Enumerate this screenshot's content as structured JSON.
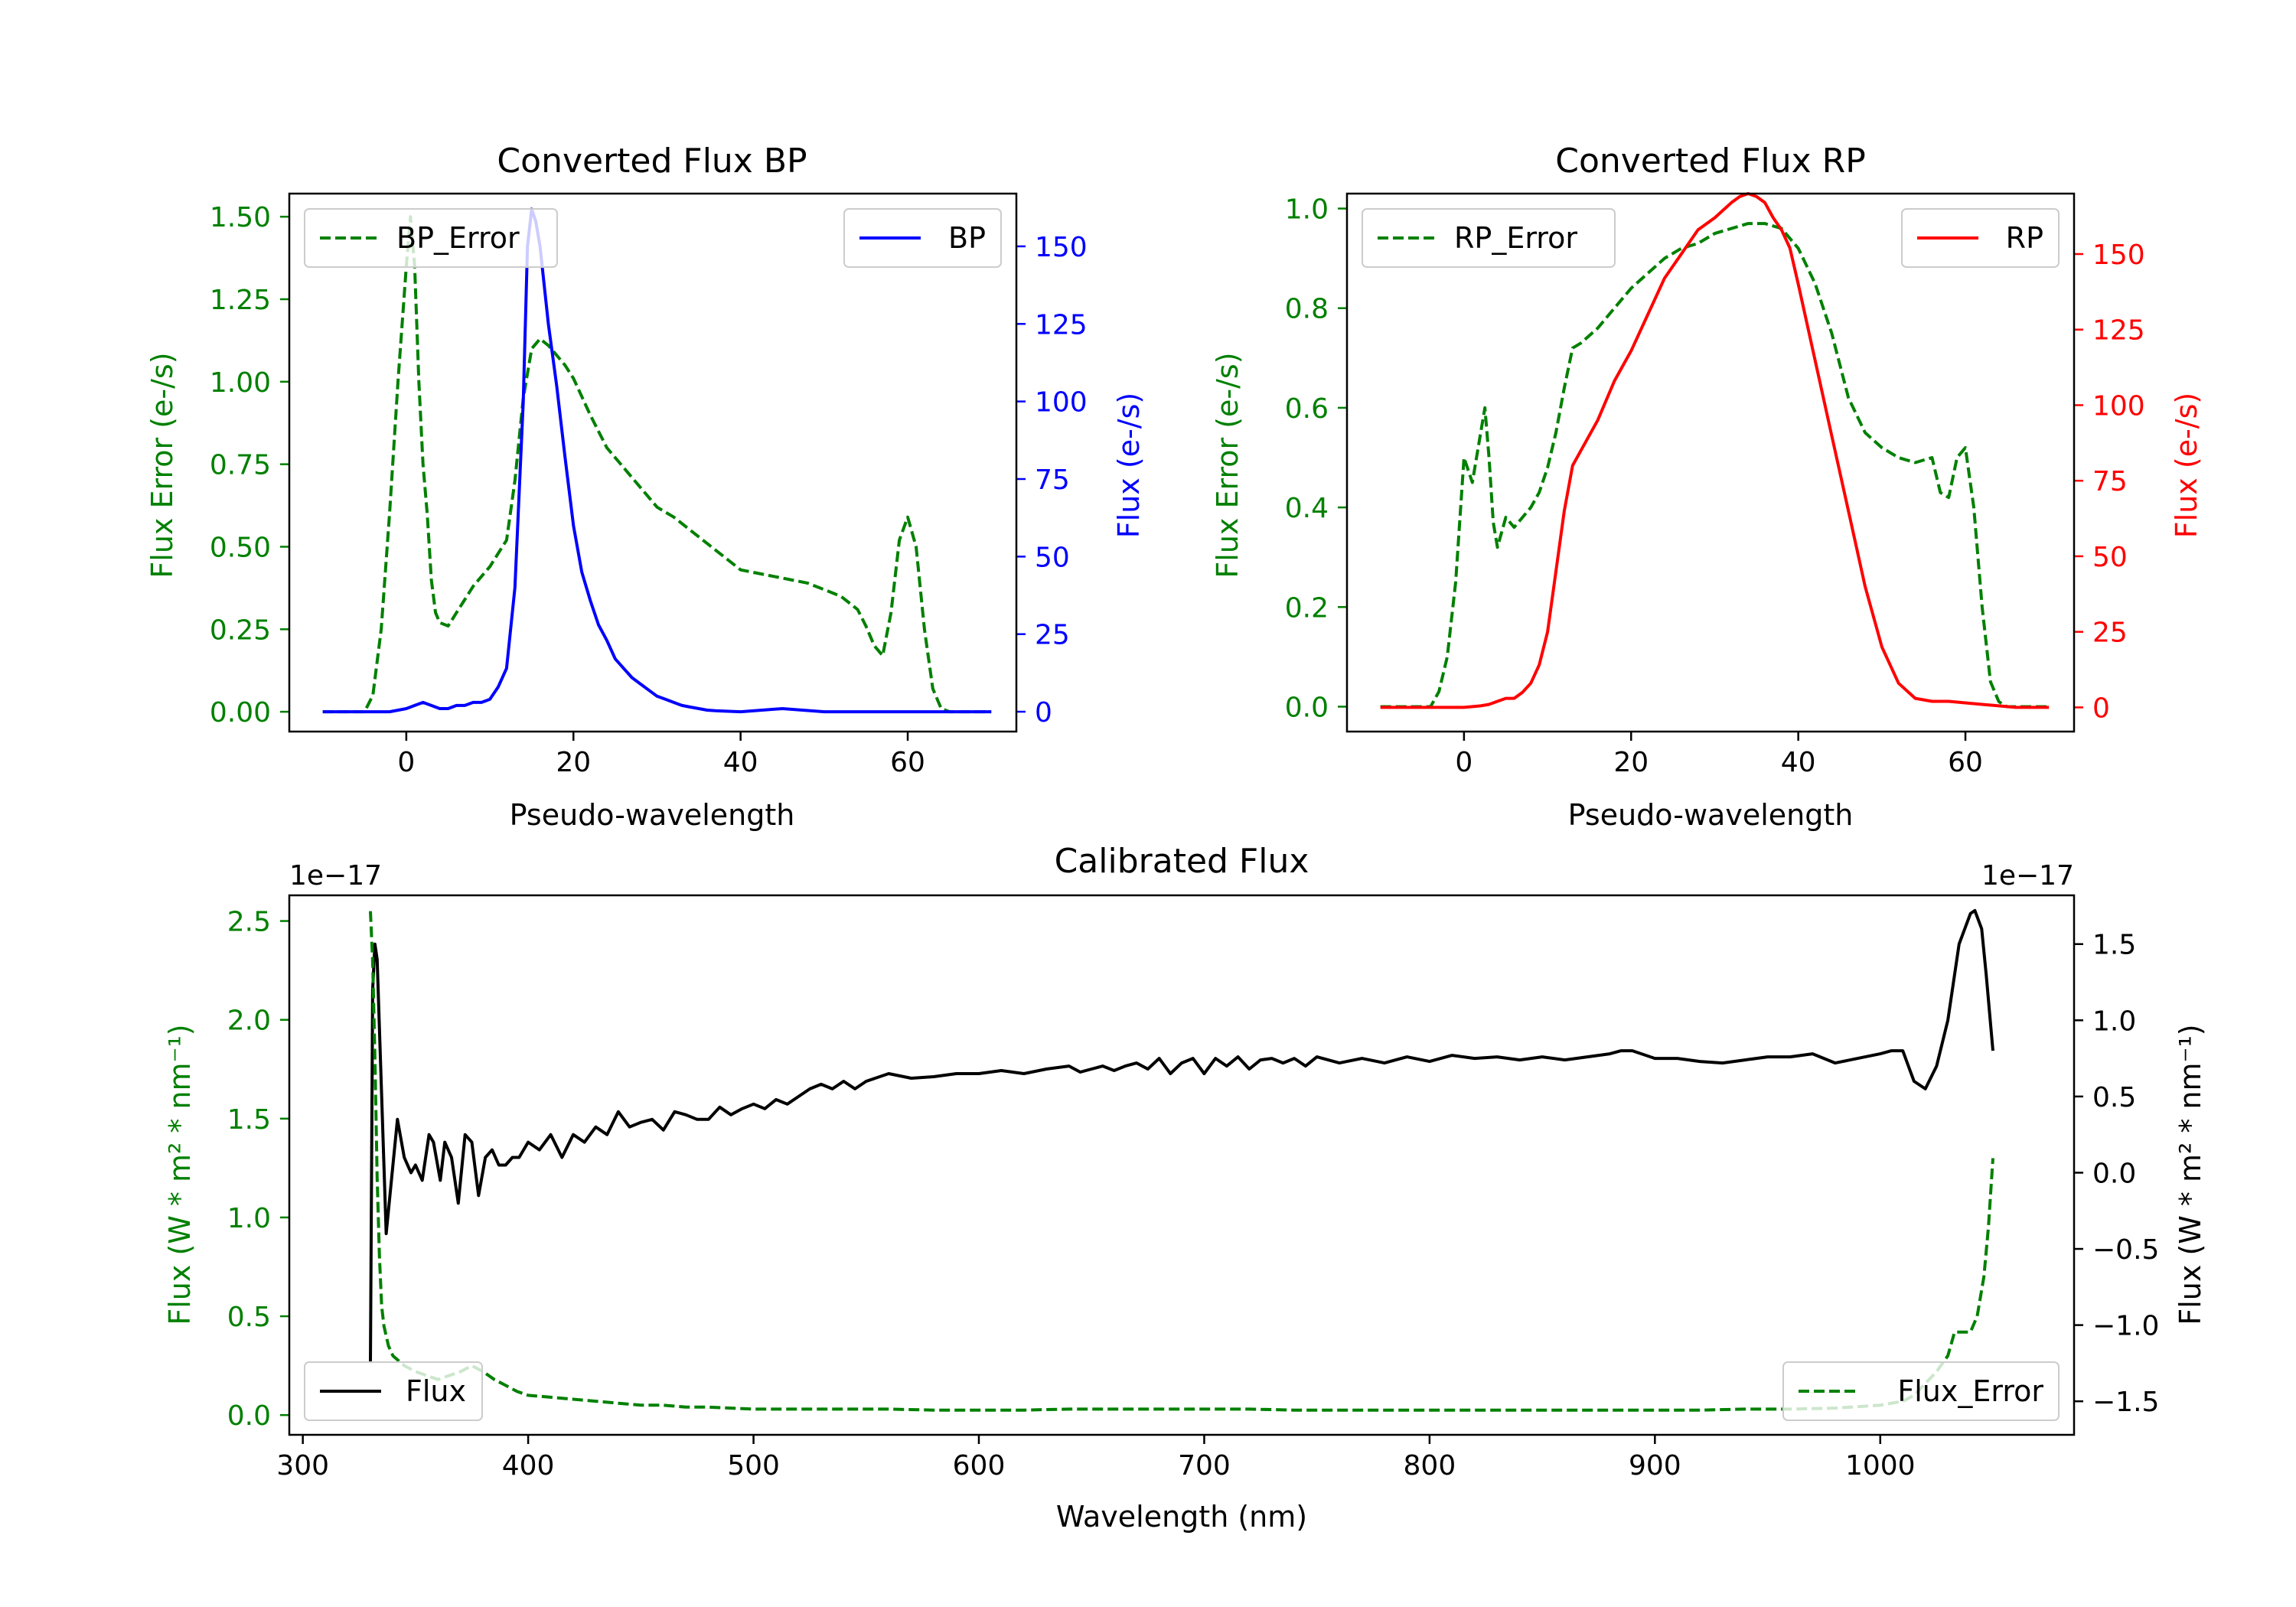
{
  "figure": {
    "title": ""
  },
  "chart_data": [
    {
      "type": "line",
      "title": "Converted Flux BP",
      "xlabel": "Pseudo-wavelength",
      "ylabel_left": "Flux Error (e-/s)",
      "ylabel_right": "Flux (e-/s)",
      "xlim": [
        -14,
        73
      ],
      "ylim_left": [
        -0.06,
        1.57
      ],
      "ylim_right": [
        -6.4,
        167
      ],
      "xticks": [
        "0",
        "20",
        "40",
        "60"
      ],
      "yticks_left": [
        "0.00",
        "0.25",
        "0.50",
        "0.75",
        "1.00",
        "1.25",
        "1.50"
      ],
      "yticks_right": [
        "0",
        "25",
        "50",
        "75",
        "100",
        "125",
        "150"
      ],
      "left_color": "#008000",
      "right_color": "#0000ff",
      "legend_left": "BP_Error",
      "legend_right": "BP",
      "series": [
        {
          "name": "BP_Error",
          "axis": "left",
          "style": "dashed",
          "color": "#008000",
          "x": [
            -10,
            -5,
            -4,
            -3,
            -2,
            -1,
            0,
            0.5,
            1,
            1.5,
            2,
            2.5,
            3,
            3.5,
            4,
            5,
            6,
            7,
            8,
            9,
            10,
            11,
            12,
            13,
            14,
            15,
            16,
            17,
            18,
            19,
            20,
            22,
            24,
            26,
            28,
            30,
            32,
            34,
            36,
            38,
            40,
            42,
            44,
            46,
            48,
            50,
            52,
            54,
            55,
            56,
            57,
            58,
            59,
            60,
            61,
            62,
            63,
            64,
            65,
            70
          ],
          "y": [
            0,
            0,
            0.05,
            0.25,
            0.6,
            1.0,
            1.35,
            1.5,
            1.35,
            1.0,
            0.75,
            0.6,
            0.4,
            0.3,
            0.27,
            0.26,
            0.3,
            0.34,
            0.38,
            0.41,
            0.44,
            0.48,
            0.52,
            0.7,
            0.95,
            1.1,
            1.13,
            1.11,
            1.08,
            1.05,
            1.01,
            0.9,
            0.8,
            0.74,
            0.68,
            0.62,
            0.59,
            0.55,
            0.51,
            0.47,
            0.43,
            0.42,
            0.41,
            0.4,
            0.39,
            0.37,
            0.35,
            0.31,
            0.26,
            0.2,
            0.17,
            0.3,
            0.52,
            0.59,
            0.5,
            0.25,
            0.07,
            0.01,
            0,
            0
          ]
        },
        {
          "name": "BP",
          "axis": "right",
          "style": "solid",
          "color": "#0000ff",
          "x": [
            -10,
            -5,
            -2,
            0,
            1,
            2,
            3,
            4,
            5,
            6,
            7,
            8,
            9,
            10,
            11,
            12,
            13,
            14,
            14.5,
            15,
            15.5,
            16,
            17,
            18,
            19,
            20,
            21,
            22,
            23,
            24,
            25,
            26,
            27,
            28,
            29,
            30,
            31,
            32,
            33,
            34,
            35,
            36,
            37,
            38,
            40,
            45,
            50,
            55,
            60,
            65,
            70
          ],
          "y": [
            0,
            0,
            0,
            1,
            2,
            3,
            2,
            1,
            1,
            2,
            2,
            3,
            3,
            4,
            8,
            14,
            40,
            100,
            150,
            162,
            158,
            150,
            125,
            105,
            82,
            60,
            45,
            36,
            28,
            23,
            17,
            14,
            11,
            9,
            7,
            5,
            4,
            3,
            2,
            1.5,
            1,
            0.5,
            0.3,
            0.2,
            0,
            1,
            0,
            0,
            0,
            0,
            0
          ]
        }
      ]
    },
    {
      "type": "line",
      "title": "Converted Flux RP",
      "xlabel": "Pseudo-wavelength",
      "ylabel_left": "Flux Error (e-/s)",
      "ylabel_right": "Flux (e-/s)",
      "xlim": [
        -14,
        73
      ],
      "ylim_left": [
        -0.05,
        1.03
      ],
      "ylim_right": [
        -8,
        170
      ],
      "xticks": [
        "0",
        "20",
        "40",
        "60"
      ],
      "yticks_left": [
        "0.0",
        "0.2",
        "0.4",
        "0.6",
        "0.8",
        "1.0"
      ],
      "yticks_right": [
        "0",
        "25",
        "50",
        "75",
        "100",
        "125",
        "150"
      ],
      "left_color": "#008000",
      "right_color": "#ff0000",
      "legend_left": "RP_Error",
      "legend_right": "RP",
      "series": [
        {
          "name": "RP_Error",
          "axis": "left",
          "style": "dashed",
          "color": "#008000",
          "x": [
            -10,
            -4,
            -3,
            -2,
            -1,
            0,
            1,
            2,
            2.5,
            3,
            3.5,
            4,
            5,
            6,
            7,
            8,
            9,
            10,
            11,
            12,
            13,
            14,
            16,
            18,
            20,
            22,
            24,
            26,
            28,
            30,
            32,
            34,
            36,
            38,
            40,
            42,
            44,
            46,
            48,
            50,
            52,
            54,
            56,
            57,
            58,
            59,
            60,
            61,
            62,
            63,
            64,
            65,
            70
          ],
          "y": [
            0,
            0,
            0.03,
            0.1,
            0.25,
            0.5,
            0.45,
            0.55,
            0.6,
            0.5,
            0.37,
            0.32,
            0.38,
            0.36,
            0.38,
            0.4,
            0.43,
            0.48,
            0.55,
            0.64,
            0.72,
            0.73,
            0.76,
            0.8,
            0.84,
            0.87,
            0.9,
            0.92,
            0.93,
            0.95,
            0.96,
            0.97,
            0.97,
            0.96,
            0.92,
            0.85,
            0.75,
            0.62,
            0.55,
            0.52,
            0.5,
            0.49,
            0.5,
            0.43,
            0.42,
            0.5,
            0.52,
            0.4,
            0.2,
            0.05,
            0.01,
            0,
            0
          ]
        },
        {
          "name": "RP",
          "axis": "right",
          "style": "solid",
          "color": "#ff0000",
          "x": [
            -10,
            0,
            2,
            3,
            4,
            5,
            6,
            7,
            8,
            9,
            10,
            11,
            12,
            13,
            14,
            16,
            18,
            20,
            22,
            24,
            26,
            28,
            30,
            32,
            33,
            34,
            35,
            36,
            37,
            38,
            39,
            40,
            42,
            44,
            46,
            48,
            50,
            52,
            54,
            56,
            58,
            60,
            62,
            64,
            66,
            70
          ],
          "y": [
            0,
            0,
            0.5,
            1,
            2,
            3,
            3,
            5,
            8,
            14,
            25,
            45,
            65,
            80,
            85,
            95,
            108,
            118,
            130,
            142,
            150,
            158,
            162,
            167,
            169,
            170,
            169,
            167,
            162,
            158,
            152,
            140,
            115,
            90,
            65,
            40,
            20,
            8,
            3,
            2,
            2,
            1.5,
            1,
            0.5,
            0,
            0
          ]
        }
      ]
    },
    {
      "type": "line",
      "title": "Calibrated Flux",
      "xlabel": "Wavelength (nm)",
      "ylabel_left": "Flux (W * m² * nm⁻¹)",
      "ylabel_right": "Flux (W * m² * nm⁻¹)",
      "offset_left": "1e−17",
      "offset_right": "1e−17",
      "xlim": [
        294,
        1086
      ],
      "ylim_left": [
        -0.1,
        2.63
      ],
      "ylim_right": [
        -1.72,
        1.82
      ],
      "xticks": [
        "300",
        "400",
        "500",
        "600",
        "700",
        "800",
        "900",
        "1000"
      ],
      "yticks_left": [
        "0.0",
        "0.5",
        "1.0",
        "1.5",
        "2.0",
        "2.5"
      ],
      "yticks_right": [
        "−1.5",
        "−1.0",
        "−0.5",
        "0.0",
        "0.5",
        "1.0",
        "1.5"
      ],
      "left_color": "#008000",
      "right_color": "#000000",
      "legend_left": "Flux",
      "legend_right": "Flux_Error",
      "series": [
        {
          "name": "Flux",
          "axis": "right",
          "style": "solid",
          "color": "#000000",
          "x": [
            330,
            331,
            332,
            333,
            335,
            337,
            340,
            342,
            345,
            348,
            350,
            353,
            356,
            358,
            361,
            363,
            366,
            369,
            372,
            375,
            378,
            381,
            384,
            387,
            390,
            393,
            396,
            400,
            405,
            410,
            415,
            420,
            425,
            430,
            435,
            440,
            445,
            450,
            455,
            460,
            465,
            470,
            475,
            480,
            485,
            490,
            495,
            500,
            505,
            510,
            515,
            520,
            525,
            530,
            535,
            540,
            545,
            550,
            560,
            570,
            580,
            590,
            600,
            610,
            620,
            630,
            640,
            645,
            650,
            655,
            660,
            665,
            670,
            675,
            680,
            685,
            690,
            695,
            700,
            705,
            710,
            715,
            720,
            725,
            730,
            735,
            740,
            745,
            750,
            760,
            770,
            780,
            790,
            800,
            810,
            820,
            830,
            840,
            850,
            860,
            870,
            880,
            885,
            890,
            900,
            910,
            920,
            930,
            940,
            950,
            960,
            970,
            980,
            990,
            1000,
            1005,
            1010,
            1015,
            1020,
            1025,
            1030,
            1035,
            1040,
            1042,
            1045,
            1047,
            1050
          ],
          "y": [
            -1.25,
            1.2,
            1.5,
            1.4,
            0.5,
            -0.4,
            0.05,
            0.35,
            0.1,
            0.0,
            0.05,
            -0.05,
            0.25,
            0.2,
            -0.05,
            0.2,
            0.1,
            -0.2,
            0.25,
            0.2,
            -0.15,
            0.1,
            0.15,
            0.05,
            0.05,
            0.1,
            0.1,
            0.2,
            0.15,
            0.25,
            0.1,
            0.25,
            0.2,
            0.3,
            0.25,
            0.4,
            0.3,
            0.33,
            0.35,
            0.28,
            0.4,
            0.38,
            0.35,
            0.35,
            0.43,
            0.38,
            0.42,
            0.45,
            0.42,
            0.48,
            0.45,
            0.5,
            0.55,
            0.58,
            0.55,
            0.6,
            0.55,
            0.6,
            0.65,
            0.62,
            0.63,
            0.65,
            0.65,
            0.67,
            0.65,
            0.68,
            0.7,
            0.66,
            0.68,
            0.7,
            0.67,
            0.7,
            0.72,
            0.68,
            0.75,
            0.65,
            0.72,
            0.75,
            0.65,
            0.75,
            0.7,
            0.76,
            0.68,
            0.74,
            0.75,
            0.72,
            0.75,
            0.7,
            0.76,
            0.72,
            0.75,
            0.72,
            0.76,
            0.73,
            0.77,
            0.75,
            0.76,
            0.74,
            0.76,
            0.74,
            0.76,
            0.78,
            0.8,
            0.8,
            0.75,
            0.75,
            0.73,
            0.72,
            0.74,
            0.76,
            0.76,
            0.78,
            0.72,
            0.75,
            0.78,
            0.8,
            0.8,
            0.6,
            0.55,
            0.7,
            1.0,
            1.5,
            1.7,
            1.72,
            1.6,
            1.3,
            0.8
          ]
        },
        {
          "name": "Flux_Error",
          "axis": "left",
          "style": "dashed",
          "color": "#008000",
          "x": [
            330,
            331,
            332,
            333,
            334,
            335,
            336,
            338,
            340,
            345,
            350,
            355,
            360,
            365,
            370,
            375,
            380,
            385,
            390,
            395,
            400,
            410,
            420,
            430,
            440,
            450,
            460,
            470,
            480,
            490,
            500,
            520,
            540,
            560,
            580,
            600,
            620,
            640,
            660,
            680,
            700,
            720,
            740,
            760,
            780,
            800,
            820,
            840,
            860,
            880,
            900,
            920,
            940,
            960,
            980,
            1000,
            1010,
            1015,
            1020,
            1025,
            1030,
            1033,
            1036,
            1040,
            1043,
            1046,
            1048,
            1050
          ],
          "y": [
            2.55,
            2.3,
            1.8,
            1.2,
            0.8,
            0.55,
            0.45,
            0.35,
            0.3,
            0.25,
            0.22,
            0.2,
            0.18,
            0.2,
            0.22,
            0.25,
            0.22,
            0.18,
            0.15,
            0.12,
            0.1,
            0.09,
            0.08,
            0.07,
            0.06,
            0.05,
            0.05,
            0.04,
            0.04,
            0.035,
            0.03,
            0.03,
            0.03,
            0.03,
            0.025,
            0.025,
            0.025,
            0.03,
            0.03,
            0.03,
            0.03,
            0.03,
            0.025,
            0.025,
            0.025,
            0.025,
            0.025,
            0.025,
            0.025,
            0.025,
            0.025,
            0.025,
            0.03,
            0.03,
            0.035,
            0.05,
            0.07,
            0.1,
            0.16,
            0.22,
            0.3,
            0.42,
            0.42,
            0.42,
            0.5,
            0.7,
            0.95,
            1.3
          ]
        }
      ]
    }
  ]
}
